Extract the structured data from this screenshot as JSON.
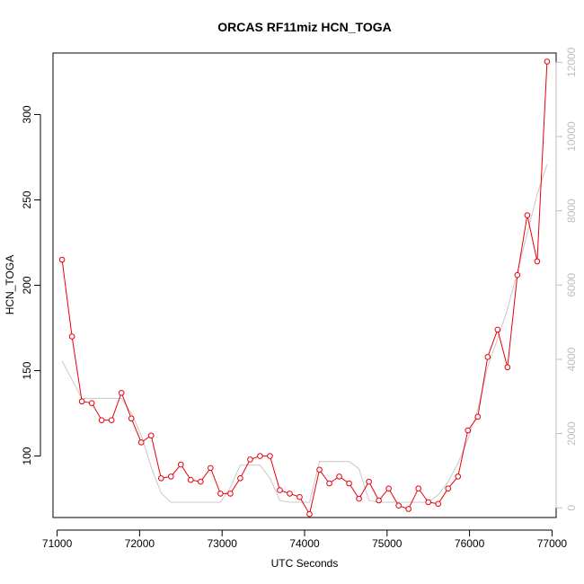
{
  "chart_data": {
    "type": "line",
    "title": "ORCAS RF11miz HCN_TOGA",
    "xlabel": "UTC Seconds",
    "ylabel": "HCN_TOGA",
    "xlim": [
      70950,
      77050
    ],
    "ylim": [
      64,
      336
    ],
    "y2lim": [
      -260,
      12250
    ],
    "x_ticks": [
      71000,
      72000,
      73000,
      74000,
      75000,
      76000,
      77000
    ],
    "x_tick_labels": [
      "71000",
      "72000",
      "73000",
      "74000",
      "75000",
      "76000",
      "77000"
    ],
    "y_ticks": [
      100,
      150,
      200,
      250,
      300
    ],
    "y_tick_labels": [
      "100",
      "150",
      "200",
      "250",
      "300"
    ],
    "y2_ticks": [
      0,
      2000,
      4000,
      6000,
      8000,
      10000,
      12000
    ],
    "y2_tick_labels": [
      "0",
      "2000",
      "4000",
      "6000",
      "8000",
      "10000",
      "12000"
    ],
    "colors": {
      "primary": "#e8000b",
      "secondary": "#c8c8c8",
      "axis": "#000000",
      "axis2": "#bebebe"
    },
    "series": [
      {
        "axis": "left",
        "style": "line+points",
        "x": [
          71060,
          71180,
          71300,
          71420,
          71540,
          71660,
          71780,
          71900,
          72020,
          72140,
          72260,
          72380,
          72500,
          72620,
          72740,
          72860,
          72980,
          73100,
          73220,
          73340,
          73460,
          73580,
          73700,
          73820,
          73940,
          74060,
          74180,
          74300,
          74420,
          74540,
          74660,
          74780,
          74900,
          75020,
          75140,
          75260,
          75380,
          75500,
          75620,
          75740,
          75860,
          75980,
          76100,
          76220,
          76340,
          76460,
          76580,
          76700,
          76820,
          76940
        ],
        "y": [
          215,
          170,
          132,
          131,
          121,
          121,
          137,
          122,
          108,
          112,
          87,
          88,
          95,
          86,
          85,
          93,
          78,
          78,
          87,
          98,
          100,
          100,
          80,
          78,
          76,
          66,
          92,
          84,
          88,
          84,
          75,
          85,
          74,
          81,
          71,
          69,
          81,
          73,
          72,
          81,
          88,
          115,
          123,
          158,
          174,
          152,
          206,
          241,
          214,
          331
        ]
      },
      {
        "axis": "right",
        "style": "line",
        "x": [
          71060,
          71180,
          71300,
          71420,
          71540,
          71660,
          71780,
          71900,
          72020,
          72140,
          72260,
          72380,
          72500,
          72620,
          72740,
          72860,
          72980,
          73100,
          73220,
          73340,
          73460,
          73580,
          73700,
          73820,
          73940,
          74060,
          74180,
          74300,
          74420,
          74540,
          74660,
          74780,
          74900,
          75020,
          75140,
          75260,
          75380,
          75500,
          75620,
          75740,
          75860,
          75980,
          76100,
          76220,
          76340,
          76460,
          76580,
          76700,
          76820,
          76940
        ],
        "y": [
          3950,
          3450,
          2950,
          2950,
          2950,
          2950,
          2950,
          2550,
          1950,
          1100,
          400,
          150,
          150,
          150,
          150,
          150,
          150,
          550,
          1150,
          1150,
          1150,
          800,
          200,
          150,
          150,
          150,
          1250,
          1250,
          1250,
          1250,
          1050,
          200,
          150,
          150,
          150,
          150,
          150,
          150,
          350,
          700,
          1200,
          1850,
          2650,
          3800,
          4550,
          5350,
          6350,
          7400,
          8450,
          9250
        ]
      }
    ]
  }
}
